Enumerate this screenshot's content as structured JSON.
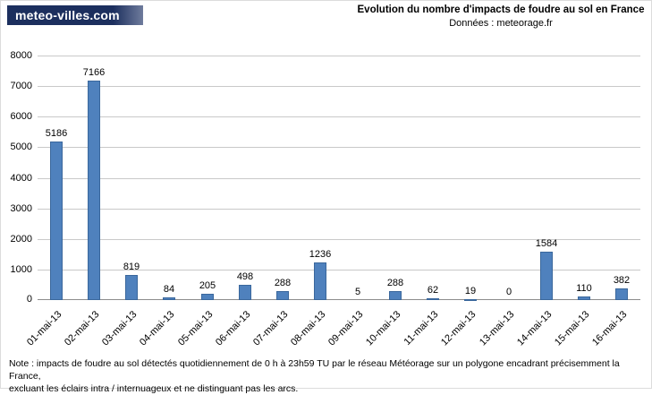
{
  "logo": {
    "text": "meteo-villes.com"
  },
  "header": {
    "title": "Evolution du nombre d'impacts de foudre au sol en France",
    "subtitle": "Données : meteorage.fr"
  },
  "note": {
    "line1": "Note : impacts de foudre au sol détectés quotidiennement de 0 h à 23h59 TU par le réseau Météorage sur un polygone encadrant précisemment la France,",
    "line2": "excluant les éclairs intra / internuageux et ne distinguant pas les arcs."
  },
  "chart_data": {
    "type": "bar",
    "title": "Evolution du nombre d'impacts de foudre au sol en France",
    "subtitle": "Données : meteorage.fr",
    "categories": [
      "01-mai-13",
      "02-mai-13",
      "03-mai-13",
      "04-mai-13",
      "05-mai-13",
      "06-mai-13",
      "07-mai-13",
      "08-mai-13",
      "09-mai-13",
      "10-mai-13",
      "11-mai-13",
      "12-mai-13",
      "13-mai-13",
      "14-mai-13",
      "15-mai-13",
      "16-mai-13"
    ],
    "values": [
      5186,
      7166,
      819,
      84,
      205,
      498,
      288,
      1236,
      5,
      288,
      62,
      19,
      0,
      1584,
      110,
      382
    ],
    "xlabel": "",
    "ylabel": "",
    "ylim": [
      0,
      8000
    ],
    "ytick_step": 1000,
    "grid": true,
    "legend": "none",
    "bar_color": "#4f81bd",
    "bar_border_color": "#3a679c",
    "gridline_color": "#c9c9c9",
    "data_labels": true
  }
}
